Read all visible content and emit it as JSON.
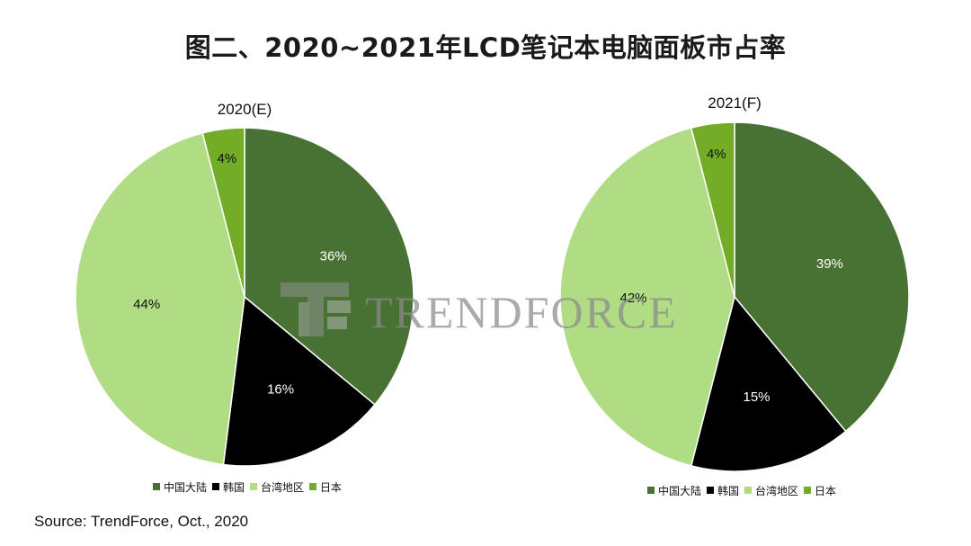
{
  "title": "图二、2020~2021年LCD笔记本电脑面板市占率",
  "source": "Source: TrendForce, Oct., 2020",
  "watermark": {
    "text": "TRENDFORCE",
    "logo_letters": "TF"
  },
  "colors": {
    "中国大陆": "#477233",
    "韩国": "#000000",
    "台湾地区": "#b0dd84",
    "日本": "#73ad27",
    "label_light": "#ffffff",
    "label_dark": "#111111",
    "watermark": "#8a8a8a"
  },
  "chart_data": [
    {
      "type": "pie",
      "title": "2020(E)",
      "categories": [
        "中国大陆",
        "韩国",
        "台湾地区",
        "日本"
      ],
      "values": [
        36,
        16,
        44,
        4
      ],
      "value_labels": [
        "36%",
        "16%",
        "44%",
        "4%"
      ],
      "legend": [
        "中国大陆",
        "韩国",
        "台湾地区",
        "日本"
      ],
      "legend_position": "bottom"
    },
    {
      "type": "pie",
      "title": "2021(F)",
      "categories": [
        "中国大陆",
        "韩国",
        "台湾地区",
        "日本"
      ],
      "values": [
        39,
        15,
        42,
        4
      ],
      "value_labels": [
        "39%",
        "15%",
        "42%",
        "4%"
      ],
      "legend": [
        "中国大陆",
        "韩国",
        "台湾地区",
        "日本"
      ],
      "legend_position": "bottom"
    }
  ]
}
